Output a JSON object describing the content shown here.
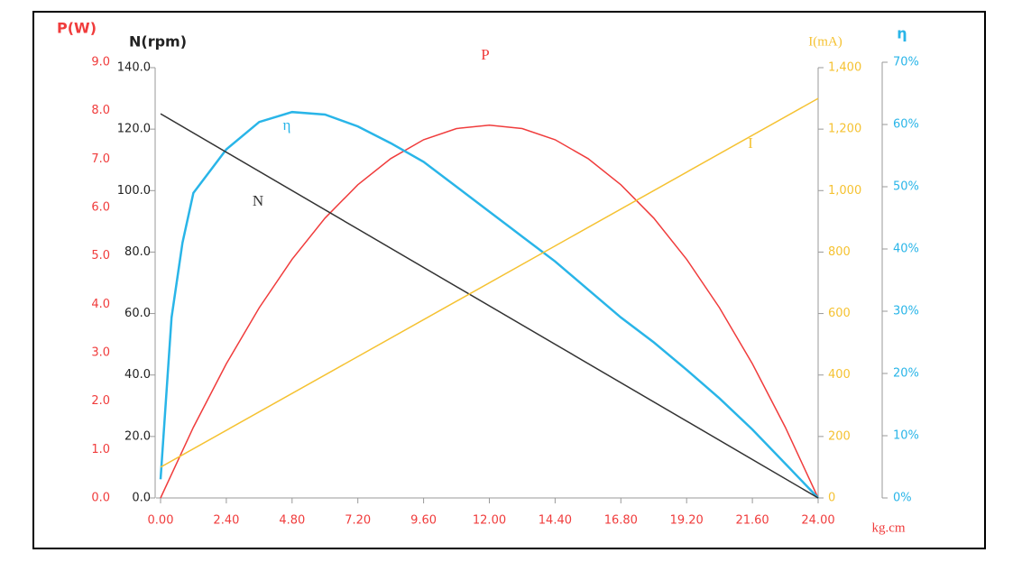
{
  "chart_data": {
    "type": "line",
    "x_label": "kg.cm",
    "xlim": [
      0,
      24
    ],
    "xticks": [
      {
        "value": 0,
        "label": "0.00"
      },
      {
        "value": 2.4,
        "label": "2.40"
      },
      {
        "value": 4.8,
        "label": "4.80"
      },
      {
        "value": 7.2,
        "label": "7.20"
      },
      {
        "value": 9.6,
        "label": "9.60"
      },
      {
        "value": 12,
        "label": "12.00"
      },
      {
        "value": 14.4,
        "label": "14.40"
      },
      {
        "value": 16.8,
        "label": "16.80"
      },
      {
        "value": 19.2,
        "label": "19.20"
      },
      {
        "value": 21.6,
        "label": "21.60"
      },
      {
        "value": 24,
        "label": "24.00"
      }
    ],
    "axes": [
      {
        "title": "P(W)",
        "color": "#f03c3c",
        "lim": [
          0,
          9
        ],
        "ticks": [
          {
            "value": 0,
            "label": "0.0"
          },
          {
            "value": 1,
            "label": "1.0"
          },
          {
            "value": 2,
            "label": "2.0"
          },
          {
            "value": 3,
            "label": "3.0"
          },
          {
            "value": 4,
            "label": "4.0"
          },
          {
            "value": 5,
            "label": "5.0"
          },
          {
            "value": 6,
            "label": "6.0"
          },
          {
            "value": 7,
            "label": "7.0"
          },
          {
            "value": 8,
            "label": "8.0"
          },
          {
            "value": 9,
            "label": "9.0"
          }
        ]
      },
      {
        "title": "N(rpm)",
        "color": "#222222",
        "lim": [
          0,
          140
        ],
        "ticks": [
          {
            "value": 0,
            "label": "0.0"
          },
          {
            "value": 20,
            "label": "20.0"
          },
          {
            "value": 40,
            "label": "40.0"
          },
          {
            "value": 60,
            "label": "60.0"
          },
          {
            "value": 80,
            "label": "80.0"
          },
          {
            "value": 100,
            "label": "100.0"
          },
          {
            "value": 120,
            "label": "120.0"
          },
          {
            "value": 140,
            "label": "140.0"
          }
        ]
      },
      {
        "title": "I(mA)",
        "color": "#f5c232",
        "lim": [
          0,
          1400
        ],
        "ticks": [
          0,
          200,
          400,
          600,
          800,
          {
            "value": 1000,
            "label": "1,000"
          },
          {
            "value": 1200,
            "label": "1,200"
          },
          {
            "value": 1400,
            "label": "1,400"
          }
        ]
      },
      {
        "title": "η",
        "color": "#29b5e8",
        "lim": [
          0,
          70
        ],
        "ticks": [
          {
            "value": 0,
            "label": "0%"
          },
          {
            "value": 10,
            "label": "10%"
          },
          {
            "value": 20,
            "label": "20%"
          },
          {
            "value": 30,
            "label": "30%"
          },
          {
            "value": 40,
            "label": "40%"
          },
          {
            "value": 50,
            "label": "50%"
          },
          {
            "value": 60,
            "label": "60%"
          },
          {
            "value": 70,
            "label": "70%"
          }
        ]
      }
    ],
    "series": [
      {
        "name": "P",
        "color": "#f03c3c",
        "axis": 0,
        "x": [
          0,
          1.2,
          2.4,
          3.6,
          4.8,
          6,
          7.2,
          8.4,
          9.6,
          10.8,
          12,
          13.2,
          14.4,
          15.6,
          16.8,
          18,
          19.2,
          20.4,
          21.6,
          22.8,
          24
        ],
        "values": [
          0,
          1.46,
          2.77,
          3.93,
          4.93,
          5.78,
          6.47,
          7.01,
          7.4,
          7.63,
          7.7,
          7.63,
          7.4,
          7.01,
          6.47,
          5.78,
          4.93,
          3.93,
          2.77,
          1.46,
          0
        ]
      },
      {
        "name": "η",
        "color": "#29b5e8",
        "axis": 3,
        "x": [
          0,
          0.4,
          0.8,
          1.2,
          2.4,
          3.6,
          4.8,
          6,
          7.2,
          8.4,
          9.6,
          10.8,
          12,
          13.2,
          14.4,
          15.6,
          16.8,
          18,
          19.2,
          20.4,
          21.6,
          22.8,
          24
        ],
        "values": [
          3,
          29,
          41,
          49,
          56,
          60.4,
          62,
          61.6,
          59.7,
          57,
          54,
          50,
          46,
          42,
          38,
          33.5,
          29,
          25,
          20.6,
          16,
          11,
          5.5,
          0
        ]
      },
      {
        "name": "N",
        "color": "#333333",
        "axis": 1,
        "x": [
          0,
          24
        ],
        "values": [
          125,
          0
        ]
      },
      {
        "name": "I",
        "color": "#f5c232",
        "axis": 2,
        "x": [
          0,
          24
        ],
        "values": [
          100,
          1300
        ]
      }
    ]
  }
}
